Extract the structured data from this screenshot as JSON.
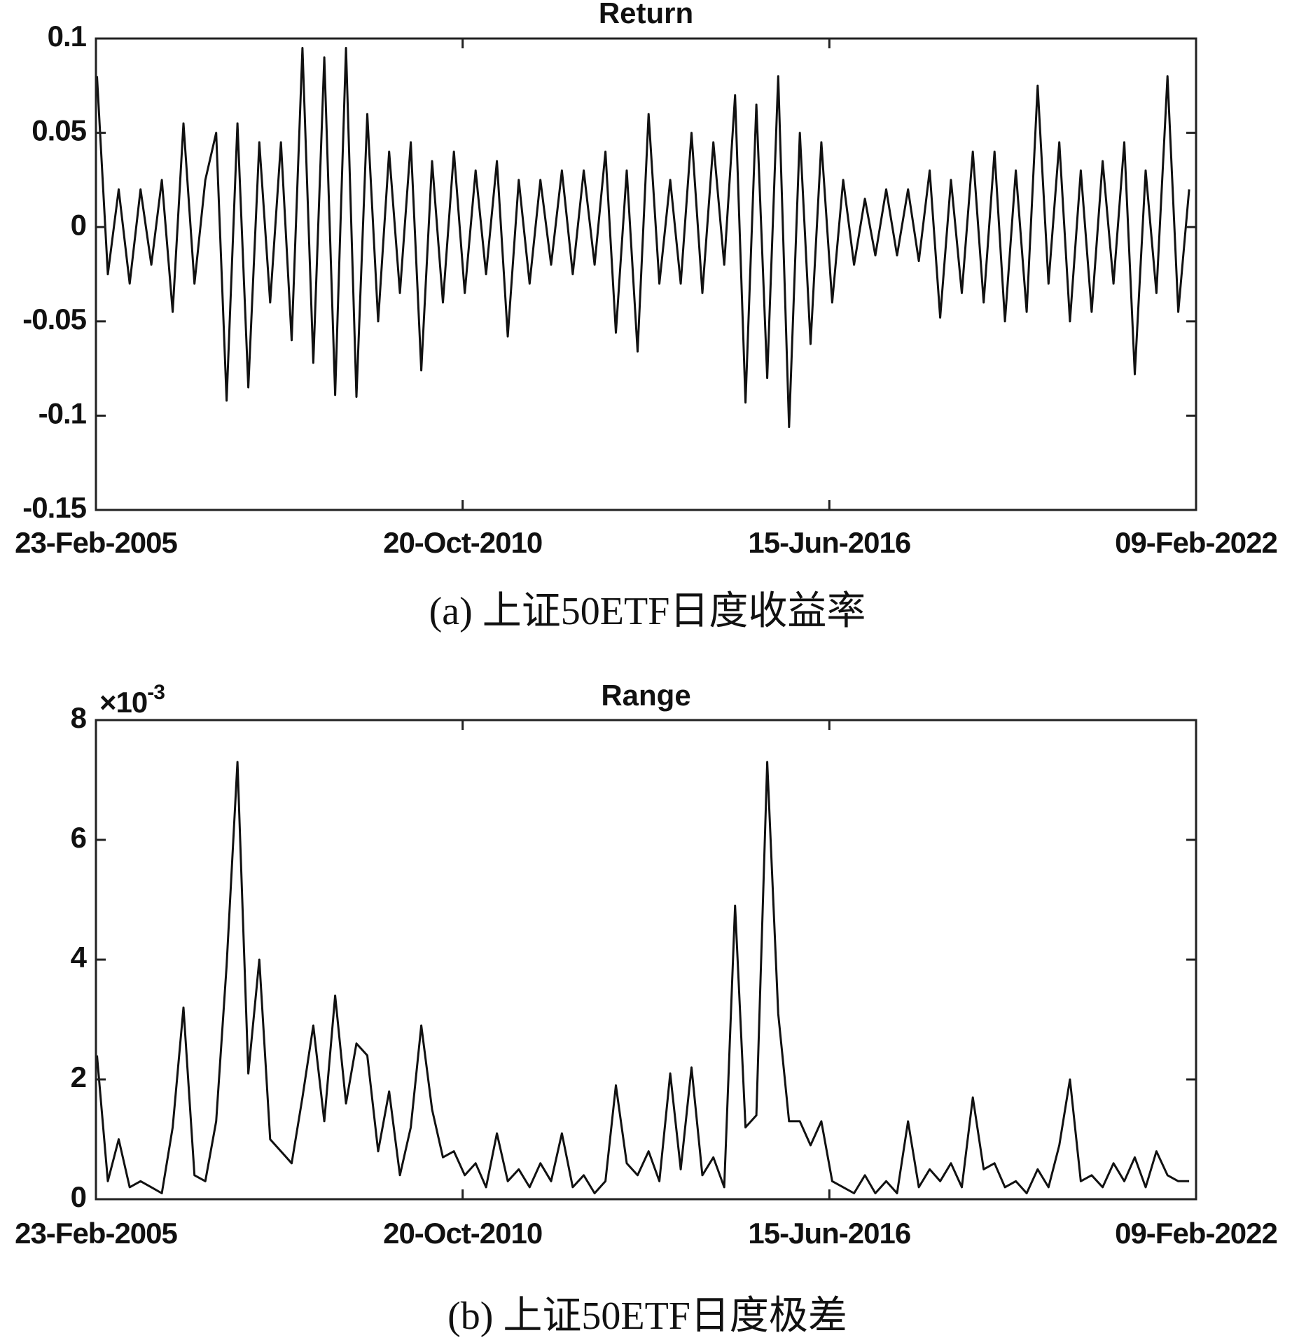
{
  "chart_data": [
    {
      "type": "line",
      "title": "Return",
      "caption": "(a) 上证50ETF日度收益率",
      "color": "#111111",
      "x": [
        "2005-03-01",
        "2005-05-01",
        "2005-07-01",
        "2005-09-01",
        "2005-11-01",
        "2006-01-01",
        "2006-03-01",
        "2006-05-01",
        "2006-07-01",
        "2006-09-01",
        "2006-11-01",
        "2007-01-01",
        "2007-03-01",
        "2007-05-01",
        "2007-07-01",
        "2007-09-01",
        "2007-11-01",
        "2008-01-01",
        "2008-03-01",
        "2008-05-01",
        "2008-07-01",
        "2008-09-01",
        "2008-11-01",
        "2009-01-01",
        "2009-03-01",
        "2009-05-01",
        "2009-07-01",
        "2009-09-01",
        "2009-11-01",
        "2010-01-01",
        "2010-03-01",
        "2010-05-01",
        "2010-07-01",
        "2010-09-01",
        "2010-11-01",
        "2011-01-01",
        "2011-03-01",
        "2011-05-01",
        "2011-07-01",
        "2011-09-01",
        "2011-11-01",
        "2012-01-01",
        "2012-03-01",
        "2012-05-01",
        "2012-07-01",
        "2012-09-01",
        "2012-11-01",
        "2013-01-01",
        "2013-03-01",
        "2013-05-01",
        "2013-07-01",
        "2013-09-01",
        "2013-11-01",
        "2014-01-01",
        "2014-03-01",
        "2014-05-01",
        "2014-07-01",
        "2014-09-01",
        "2014-11-01",
        "2015-01-01",
        "2015-03-01",
        "2015-05-01",
        "2015-07-01",
        "2015-09-01",
        "2015-11-01",
        "2016-01-01",
        "2016-03-01",
        "2016-05-01",
        "2016-07-01",
        "2016-09-01",
        "2016-11-01",
        "2017-01-01",
        "2017-03-01",
        "2017-05-01",
        "2017-07-01",
        "2017-09-01",
        "2017-11-01",
        "2018-01-01",
        "2018-03-01",
        "2018-05-01",
        "2018-07-01",
        "2018-09-01",
        "2018-11-01",
        "2019-01-01",
        "2019-03-01",
        "2019-05-01",
        "2019-07-01",
        "2019-09-01",
        "2019-11-01",
        "2020-01-01",
        "2020-03-01",
        "2020-05-01",
        "2020-07-01",
        "2020-09-01",
        "2020-11-01",
        "2021-01-01",
        "2021-03-01",
        "2021-05-01",
        "2021-07-01",
        "2021-09-01",
        "2021-11-01",
        "2022-01-01"
      ],
      "values": [
        0.08,
        -0.025,
        0.02,
        -0.03,
        0.02,
        -0.02,
        0.025,
        -0.045,
        0.055,
        -0.03,
        0.025,
        0.05,
        -0.092,
        0.055,
        -0.085,
        0.045,
        -0.04,
        0.045,
        -0.06,
        0.095,
        -0.072,
        0.09,
        -0.089,
        0.095,
        -0.09,
        0.06,
        -0.05,
        0.04,
        -0.035,
        0.045,
        -0.076,
        0.035,
        -0.04,
        0.04,
        -0.035,
        0.03,
        -0.025,
        0.035,
        -0.058,
        0.025,
        -0.03,
        0.025,
        -0.02,
        0.03,
        -0.025,
        0.03,
        -0.02,
        0.04,
        -0.056,
        0.03,
        -0.066,
        0.06,
        -0.03,
        0.025,
        -0.03,
        0.05,
        -0.035,
        0.045,
        -0.02,
        0.07,
        -0.093,
        0.065,
        -0.08,
        0.08,
        -0.106,
        0.05,
        -0.062,
        0.045,
        -0.04,
        0.025,
        -0.02,
        0.015,
        -0.015,
        0.02,
        -0.015,
        0.02,
        -0.018,
        0.03,
        -0.048,
        0.025,
        -0.035,
        0.04,
        -0.04,
        0.04,
        -0.05,
        0.03,
        -0.045,
        0.075,
        -0.03,
        0.045,
        -0.05,
        0.03,
        -0.045,
        0.035,
        -0.03,
        0.045,
        -0.078,
        0.03,
        -0.035,
        0.08,
        -0.045,
        0.02
      ],
      "xlim": [
        "2005-02-23",
        "2022-02-09"
      ],
      "xticks": [
        {
          "value": "2005-02-23",
          "label": "23-Feb-2005"
        },
        {
          "value": "2010-10-20",
          "label": "20-Oct-2010"
        },
        {
          "value": "2016-06-15",
          "label": "15-Jun-2016"
        },
        {
          "value": "2022-02-09",
          "label": "09-Feb-2022"
        }
      ],
      "ylim": [
        -0.15,
        0.1
      ],
      "yticks": [
        -0.15,
        -0.1,
        -0.05,
        0,
        0.05,
        0.1
      ]
    },
    {
      "type": "line",
      "title": "Range",
      "caption": "(b) 上证50ETF日度极差",
      "color": "#111111",
      "axis_multiplier": {
        "base": "×10",
        "exponent": "-3"
      },
      "x": [
        "2005-03-01",
        "2005-05-01",
        "2005-07-01",
        "2005-09-01",
        "2005-11-01",
        "2006-01-01",
        "2006-03-01",
        "2006-05-01",
        "2006-07-01",
        "2006-09-01",
        "2006-11-01",
        "2007-01-01",
        "2007-03-01",
        "2007-05-01",
        "2007-07-01",
        "2007-09-01",
        "2007-11-01",
        "2008-01-01",
        "2008-03-01",
        "2008-05-01",
        "2008-07-01",
        "2008-09-01",
        "2008-11-01",
        "2009-01-01",
        "2009-03-01",
        "2009-05-01",
        "2009-07-01",
        "2009-09-01",
        "2009-11-01",
        "2010-01-01",
        "2010-03-01",
        "2010-05-01",
        "2010-07-01",
        "2010-09-01",
        "2010-11-01",
        "2011-01-01",
        "2011-03-01",
        "2011-05-01",
        "2011-07-01",
        "2011-09-01",
        "2011-11-01",
        "2012-01-01",
        "2012-03-01",
        "2012-05-01",
        "2012-07-01",
        "2012-09-01",
        "2012-11-01",
        "2013-01-01",
        "2013-03-01",
        "2013-05-01",
        "2013-07-01",
        "2013-09-01",
        "2013-11-01",
        "2014-01-01",
        "2014-03-01",
        "2014-05-01",
        "2014-07-01",
        "2014-09-01",
        "2014-11-01",
        "2015-01-01",
        "2015-03-01",
        "2015-05-01",
        "2015-07-01",
        "2015-09-01",
        "2015-11-01",
        "2016-01-01",
        "2016-03-01",
        "2016-05-01",
        "2016-07-01",
        "2016-09-01",
        "2016-11-01",
        "2017-01-01",
        "2017-03-01",
        "2017-05-01",
        "2017-07-01",
        "2017-09-01",
        "2017-11-01",
        "2018-01-01",
        "2018-03-01",
        "2018-05-01",
        "2018-07-01",
        "2018-09-01",
        "2018-11-01",
        "2019-01-01",
        "2019-03-01",
        "2019-05-01",
        "2019-07-01",
        "2019-09-01",
        "2019-11-01",
        "2020-01-01",
        "2020-03-01",
        "2020-05-01",
        "2020-07-01",
        "2020-09-01",
        "2020-11-01",
        "2021-01-01",
        "2021-03-01",
        "2021-05-01",
        "2021-07-01",
        "2021-09-01",
        "2021-11-01",
        "2022-01-01"
      ],
      "values": [
        2.4,
        0.3,
        1.0,
        0.2,
        0.3,
        0.2,
        0.1,
        1.2,
        3.2,
        0.4,
        0.3,
        1.3,
        3.9,
        7.3,
        2.1,
        4.0,
        1.0,
        0.8,
        0.6,
        1.7,
        2.9,
        1.3,
        3.4,
        1.6,
        2.6,
        2.4,
        0.8,
        1.8,
        0.4,
        1.2,
        2.9,
        1.5,
        0.7,
        0.8,
        0.4,
        0.6,
        0.2,
        1.1,
        0.3,
        0.5,
        0.2,
        0.6,
        0.3,
        1.1,
        0.2,
        0.4,
        0.1,
        0.3,
        1.9,
        0.6,
        0.4,
        0.8,
        0.3,
        2.1,
        0.5,
        2.2,
        0.4,
        0.7,
        0.2,
        4.9,
        1.2,
        1.4,
        7.3,
        3.1,
        1.3,
        1.3,
        0.9,
        1.3,
        0.3,
        0.2,
        0.1,
        0.4,
        0.1,
        0.3,
        0.1,
        1.3,
        0.2,
        0.5,
        0.3,
        0.6,
        0.2,
        1.7,
        0.5,
        0.6,
        0.2,
        0.3,
        0.1,
        0.5,
        0.2,
        0.9,
        2.0,
        0.3,
        0.4,
        0.2,
        0.6,
        0.3,
        0.7,
        0.2,
        0.8,
        0.4,
        0.3,
        0.3
      ],
      "xlim": [
        "2005-02-23",
        "2022-02-09"
      ],
      "xticks": [
        {
          "value": "2005-02-23",
          "label": "23-Feb-2005"
        },
        {
          "value": "2010-10-20",
          "label": "20-Oct-2010"
        },
        {
          "value": "2016-06-15",
          "label": "15-Jun-2016"
        },
        {
          "value": "2022-02-09",
          "label": "09-Feb-2022"
        }
      ],
      "ylim": [
        0,
        8
      ],
      "yticks": [
        0,
        2,
        4,
        6,
        8
      ]
    }
  ]
}
